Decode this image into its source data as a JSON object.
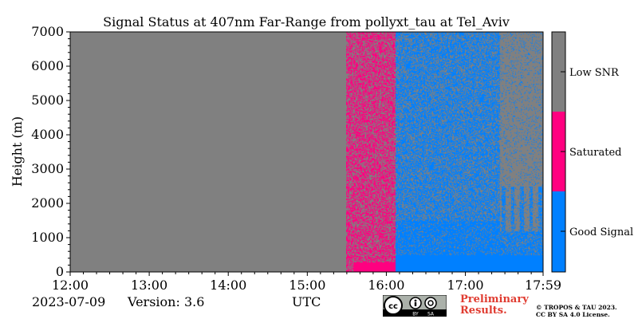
{
  "chart_data": {
    "type": "heatmap",
    "title": "Signal Status at 407nm Far-Range from pollyxt_tau at Tel_Aviv",
    "ylabel": "Height (m)",
    "xlabel": "UTC",
    "x_tick_labels": [
      "12:00",
      "13:00",
      "14:00",
      "15:00",
      "16:00",
      "17:00",
      "17:59"
    ],
    "y_tick_labels": [
      "0",
      "1000",
      "2000",
      "3000",
      "4000",
      "5000",
      "6000",
      "7000"
    ],
    "ylim": [
      0,
      7000
    ],
    "colorbar": {
      "labels": [
        "Good Signal",
        "Saturated",
        "Low SNR"
      ],
      "colors": [
        "#0080ff",
        "#ff0080",
        "#808080"
      ]
    },
    "regions": [
      {
        "from": "12:00",
        "to": "15:30",
        "status": "Low SNR"
      },
      {
        "from": "15:30",
        "to": "16:07",
        "status": "Saturated mixed with Low SNR; Saturated below 300 m"
      },
      {
        "from": "16:07",
        "to": "17:30",
        "status": "Good Signal mixed with Low SNR; Good Signal below 500 m"
      },
      {
        "from": "17:30",
        "to": "17:59",
        "status": "Low SNR with Good Signal below ~2500 m"
      }
    ]
  },
  "footer": {
    "date": "2023-07-09",
    "version": "Version: 3.6",
    "utc": "UTC",
    "prelim_line1": "Preliminary",
    "prelim_line2": "Results.",
    "copyright_line1": "© TROPOS & TAU 2023.",
    "copyright_line2": "CC BY SA 4.0 License."
  },
  "license_badge": {
    "left": "BY",
    "right": "SA"
  }
}
